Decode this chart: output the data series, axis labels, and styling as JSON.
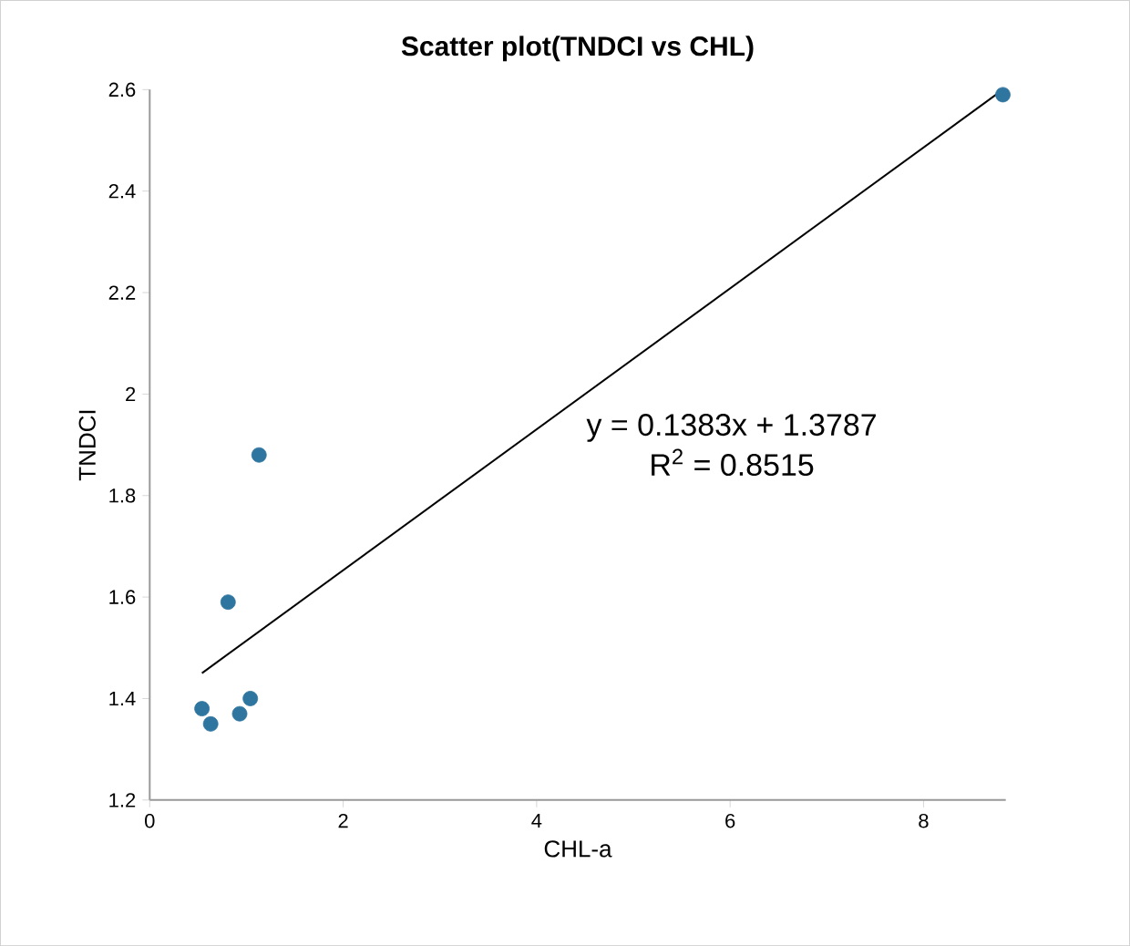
{
  "chart_data": {
    "type": "scatter",
    "title": "Scatter plot(TNDCI vs CHL)",
    "xlabel": "CHL-a",
    "ylabel": "TNDCI",
    "xlim": [
      0,
      8.85
    ],
    "ylim": [
      1.2,
      2.6
    ],
    "xticks": [
      0,
      2,
      4,
      6,
      8
    ],
    "yticks": [
      {
        "value": 1.2,
        "label": "1.2"
      },
      {
        "value": 1.4,
        "label": "1.4"
      },
      {
        "value": 1.6,
        "label": "1.6"
      },
      {
        "value": 1.8,
        "label": "1.8"
      },
      {
        "value": 2,
        "label": "2"
      },
      {
        "value": 2.2,
        "label": "2.2"
      },
      {
        "value": 2.4,
        "label": "2.4"
      },
      {
        "value": 2.6,
        "label": "2.6"
      }
    ],
    "series": [
      {
        "color": "#2e75a0",
        "marker": "circle",
        "x": [
          1.13,
          0.81,
          0.54,
          0.63,
          0.93,
          1.04,
          8.82
        ],
        "values": [
          1.88,
          1.59,
          1.38,
          1.35,
          1.37,
          1.4,
          2.59
        ]
      },
      {
        "type": "line",
        "color": "#000000",
        "x": [
          0.54,
          8.82
        ],
        "marker": "none",
        "values": [
          1.45,
          2.6
        ]
      }
    ],
    "annotations": [
      "y = 0.1383x + 1.3787",
      "R$^{2}$ = 0.8515"
    ]
  }
}
